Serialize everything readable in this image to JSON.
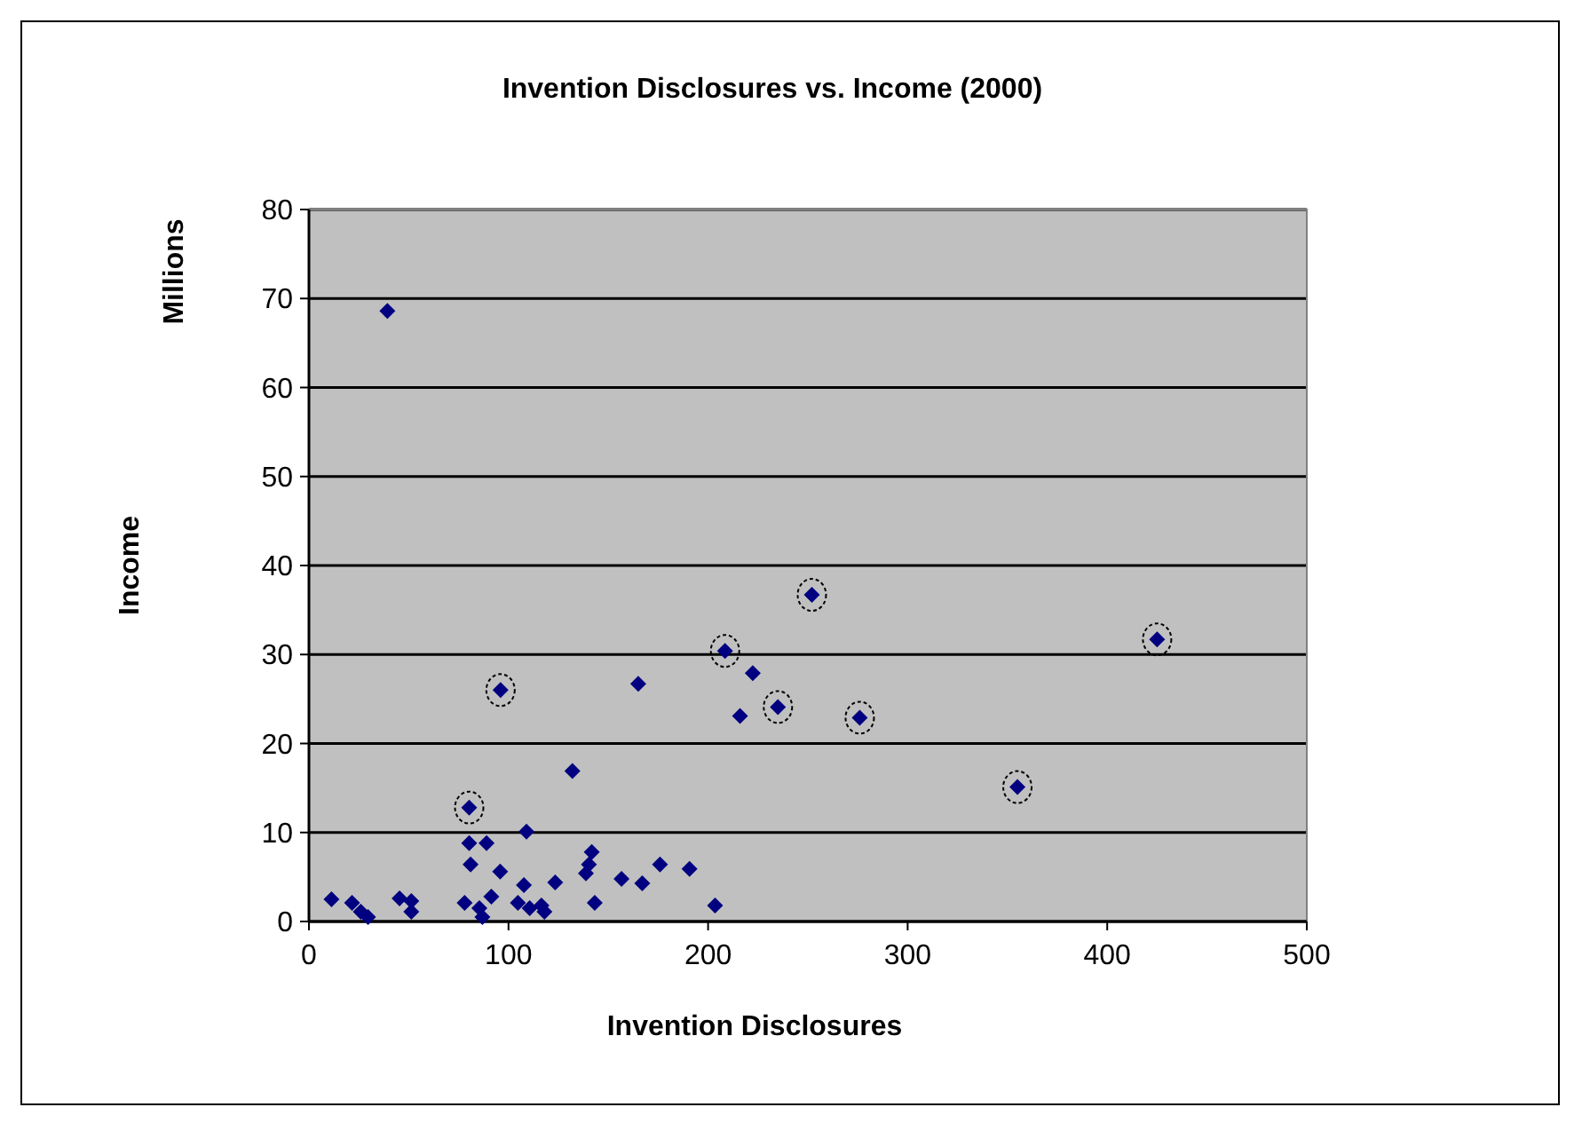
{
  "chart_data": {
    "type": "scatter",
    "title": "Invention Disclosures vs. Income (2000)",
    "xlabel": "Invention Disclosures",
    "ylabel": "Income",
    "annotations": [
      "Millions"
    ],
    "xlim": [
      0,
      500
    ],
    "xticks": [
      0,
      100,
      200,
      300,
      400,
      500
    ],
    "ylim": [
      0,
      80
    ],
    "yticks": [
      0,
      10,
      20,
      30,
      40,
      50,
      60,
      70,
      80
    ],
    "grid": "y",
    "series": [
      {
        "color": "#000080",
        "marker": "diamond",
        "x": [
          11.3,
          21.6,
          26,
          29.6,
          45.4,
          51.3,
          51.3,
          78,
          81,
          80.3,
          89,
          80.3,
          85.4,
          86.9,
          91.4,
          95.8,
          96,
          109,
          107.7,
          104.7,
          110.6,
          116.5,
          118,
          123.4,
          132,
          141.7,
          140.3,
          138.8,
          143.2,
          156.6,
          167,
          175.9,
          190.7,
          203.5,
          165,
          216,
          39.3,
          208.5,
          222.4,
          252,
          425,
          276,
          355,
          235
        ],
        "values": [
          2.5,
          2.1,
          1.1,
          0.5,
          2.6,
          2.3,
          1.1,
          2.1,
          6.4,
          8.8,
          8.8,
          12.8,
          1.5,
          0.5,
          2.8,
          5.6,
          26,
          10.1,
          4.1,
          2.1,
          1.5,
          1.8,
          1.1,
          4.4,
          16.9,
          7.8,
          6.4,
          5.4,
          2.1,
          4.8,
          4.3,
          6.4,
          5.9,
          1.8,
          26.7,
          23.1,
          68.6,
          30.4,
          27.9,
          36.7,
          31.7,
          22.9,
          15.1,
          24.1
        ]
      },
      {
        "color": "#000000",
        "marker": "circle",
        "x": [
          80.3,
          96,
          208.5,
          235,
          252,
          276,
          355,
          425
        ],
        "values": [
          12.8,
          26,
          30.4,
          24.1,
          36.7,
          22.9,
          15.1,
          31.7
        ]
      }
    ]
  }
}
